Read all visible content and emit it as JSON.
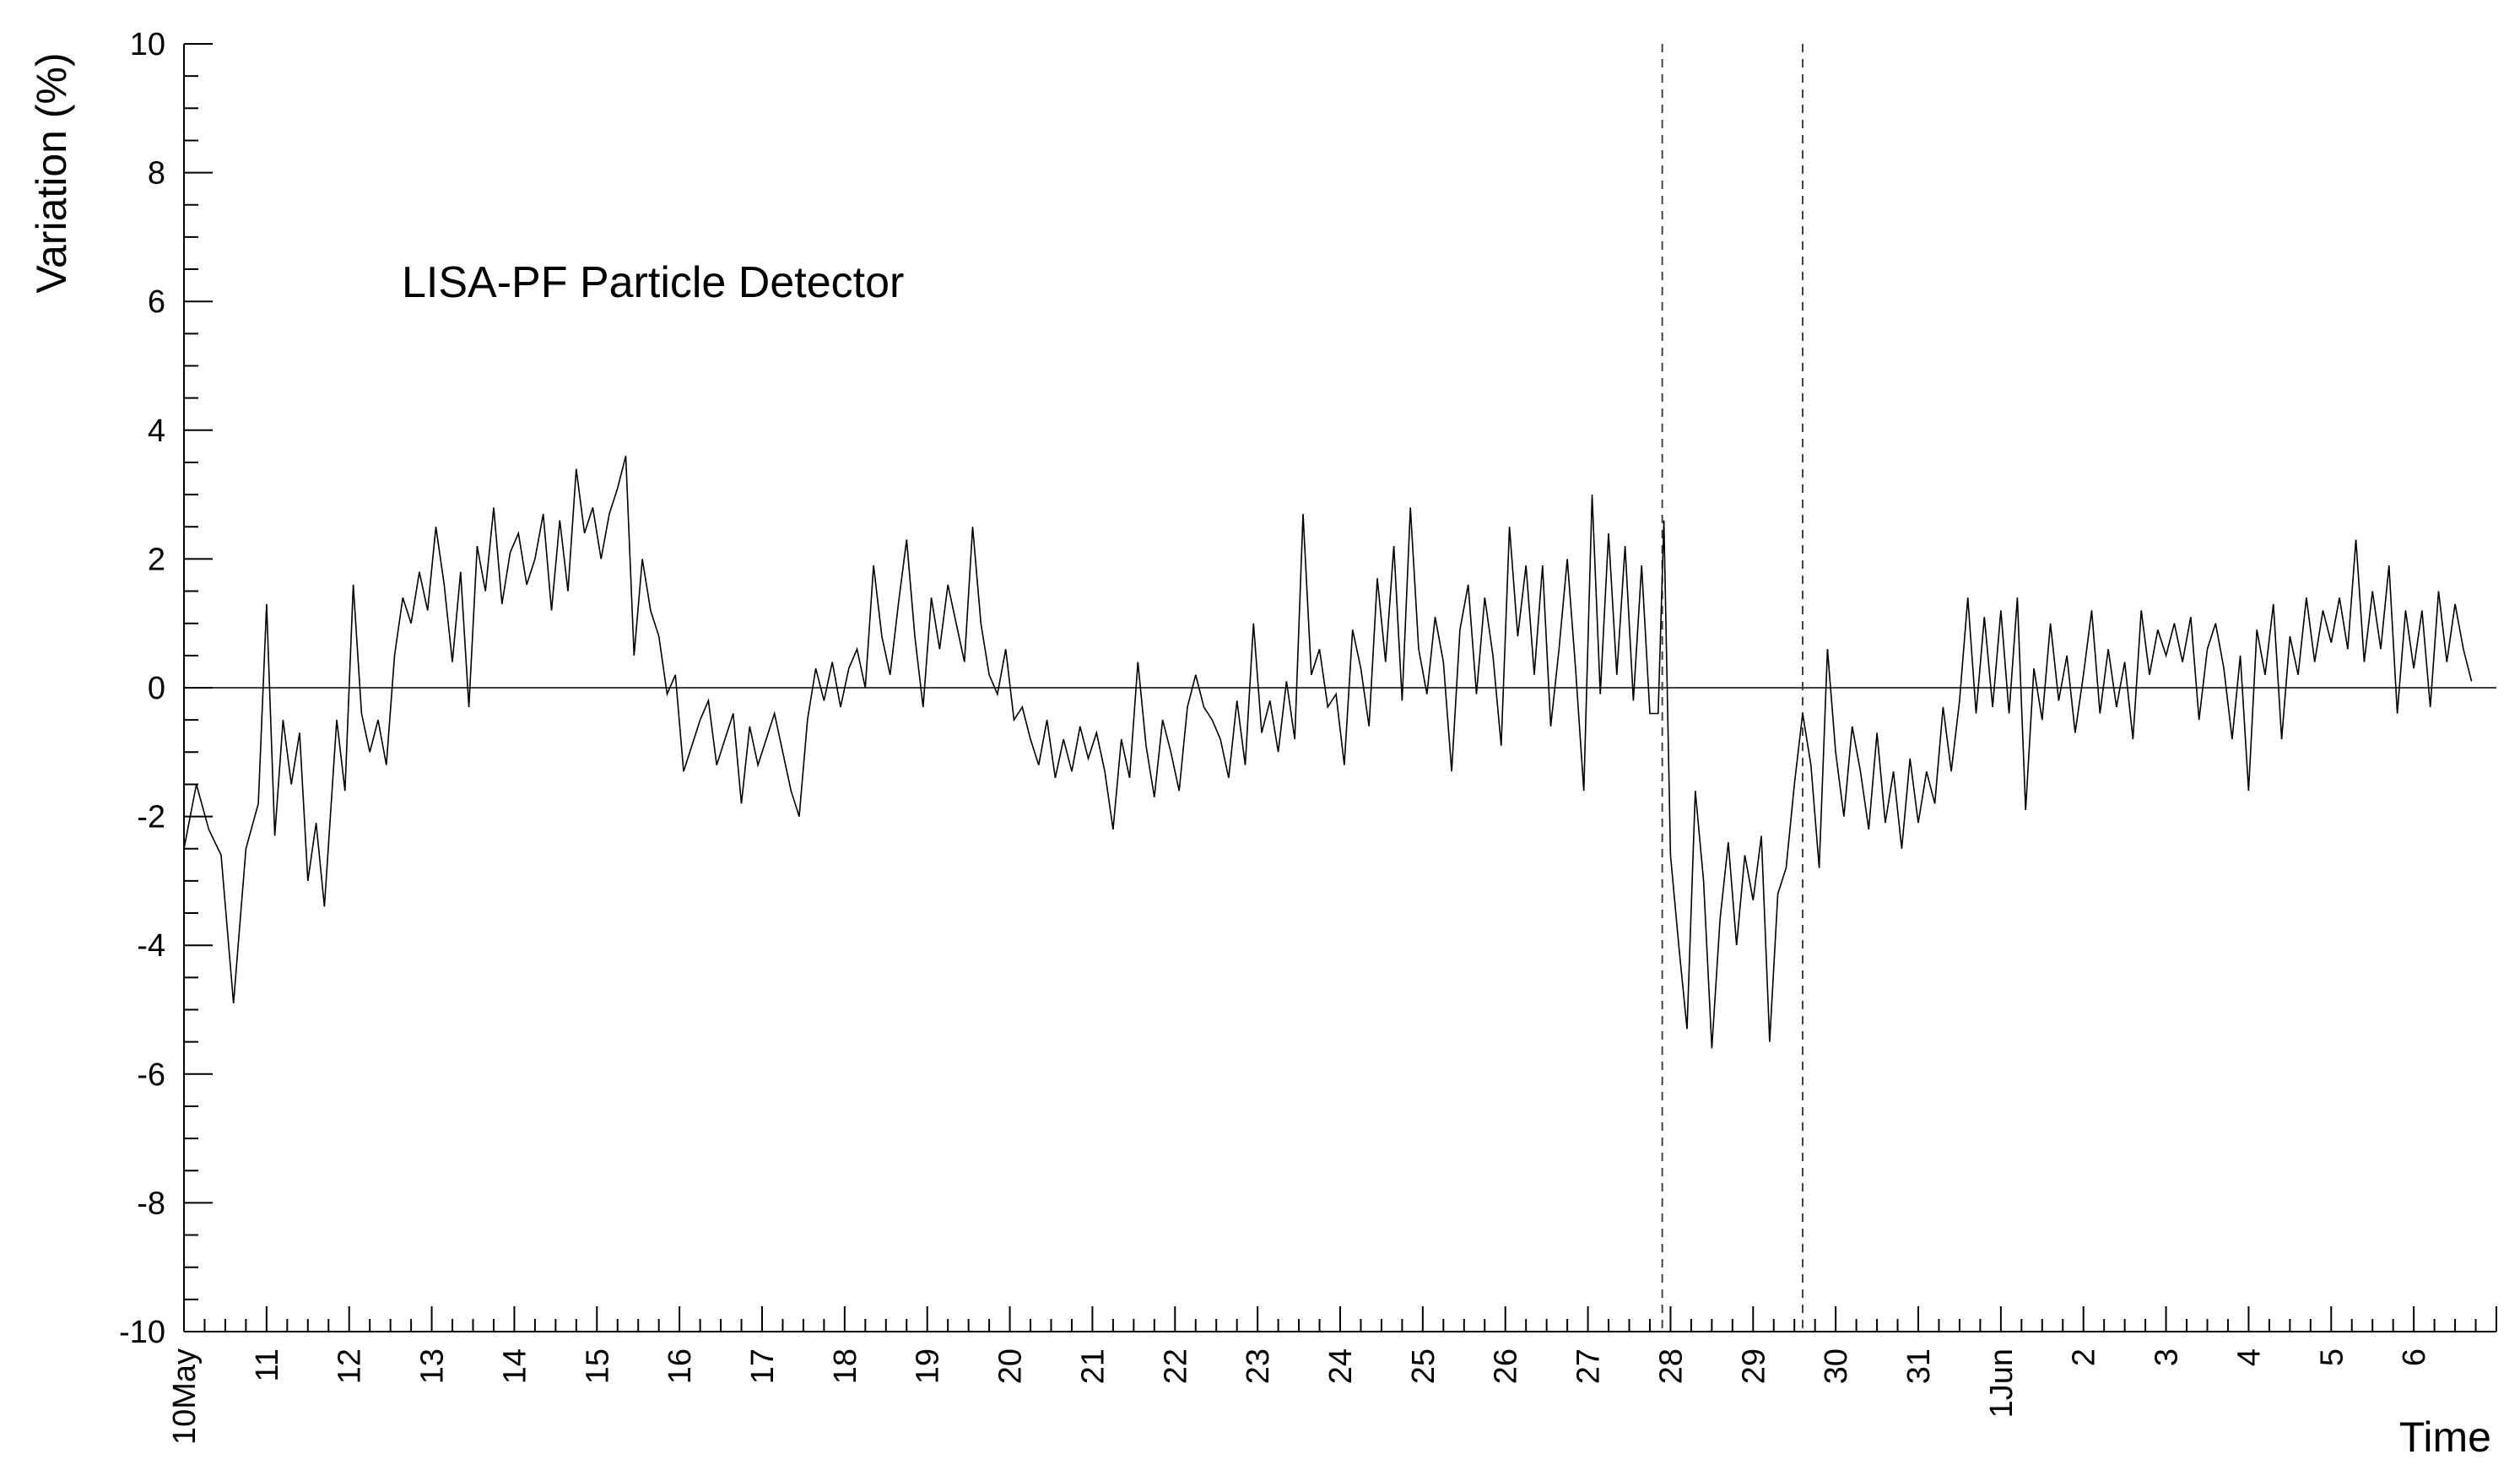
{
  "chart_data": {
    "type": "line",
    "title": "",
    "annotation": "LISA-PF Particle Detector",
    "ylabel": "Variation (%)",
    "xlabel": "Time",
    "ylim": [
      -10,
      10
    ],
    "xlim": [
      0,
      28
    ],
    "yticks": [
      -10,
      -8,
      -6,
      -4,
      -2,
      0,
      2,
      4,
      6,
      8,
      10
    ],
    "y_tick_labels": [
      "-10",
      "-8",
      "-6",
      "-4",
      "-2",
      "0",
      "2",
      "4",
      "6",
      "8",
      "10"
    ],
    "x_tick_labels": [
      "10May",
      "11",
      "12",
      "13",
      "14",
      "15",
      "16",
      "17",
      "18",
      "19",
      "20",
      "21",
      "22",
      "23",
      "24",
      "25",
      "26",
      "27",
      "28",
      "29",
      "30",
      "31",
      "1Jun",
      "2",
      "3",
      "4",
      "5",
      "6"
    ],
    "x_tick_days": [
      0,
      1,
      2,
      3,
      4,
      5,
      6,
      7,
      8,
      9,
      10,
      11,
      12,
      13,
      14,
      15,
      16,
      17,
      18,
      19,
      20,
      21,
      22,
      23,
      24,
      25,
      26,
      27
    ],
    "x_unit": "days since 10 May",
    "reference_line_y": 0,
    "dashed_vertical_lines_x": [
      17.9,
      19.6
    ],
    "series": [
      {
        "name": "",
        "color": "#000000",
        "points": [
          [
            0.0,
            -2.5
          ],
          [
            0.15,
            -1.5
          ],
          [
            0.3,
            -2.2
          ],
          [
            0.45,
            -2.6
          ],
          [
            0.6,
            -4.9
          ],
          [
            0.75,
            -2.5
          ],
          [
            0.9,
            -1.8
          ],
          [
            1.0,
            1.3
          ],
          [
            1.1,
            -2.3
          ],
          [
            1.2,
            -0.5
          ],
          [
            1.3,
            -1.5
          ],
          [
            1.4,
            -0.7
          ],
          [
            1.5,
            -3.0
          ],
          [
            1.6,
            -2.1
          ],
          [
            1.7,
            -3.4
          ],
          [
            1.85,
            -0.5
          ],
          [
            1.95,
            -1.6
          ],
          [
            2.05,
            1.6
          ],
          [
            2.15,
            -0.4
          ],
          [
            2.25,
            -1.0
          ],
          [
            2.35,
            -0.5
          ],
          [
            2.45,
            -1.2
          ],
          [
            2.55,
            0.5
          ],
          [
            2.65,
            1.4
          ],
          [
            2.75,
            1.0
          ],
          [
            2.85,
            1.8
          ],
          [
            2.95,
            1.2
          ],
          [
            3.05,
            2.5
          ],
          [
            3.15,
            1.6
          ],
          [
            3.25,
            0.4
          ],
          [
            3.35,
            1.8
          ],
          [
            3.45,
            -0.3
          ],
          [
            3.55,
            2.2
          ],
          [
            3.65,
            1.5
          ],
          [
            3.75,
            2.8
          ],
          [
            3.85,
            1.3
          ],
          [
            3.95,
            2.1
          ],
          [
            4.05,
            2.4
          ],
          [
            4.15,
            1.6
          ],
          [
            4.25,
            2.0
          ],
          [
            4.35,
            2.7
          ],
          [
            4.45,
            1.2
          ],
          [
            4.55,
            2.6
          ],
          [
            4.65,
            1.5
          ],
          [
            4.75,
            3.4
          ],
          [
            4.85,
            2.4
          ],
          [
            4.95,
            2.8
          ],
          [
            5.05,
            2.0
          ],
          [
            5.15,
            2.7
          ],
          [
            5.25,
            3.1
          ],
          [
            5.35,
            3.6
          ],
          [
            5.45,
            0.5
          ],
          [
            5.55,
            2.0
          ],
          [
            5.65,
            1.2
          ],
          [
            5.75,
            0.8
          ],
          [
            5.85,
            -0.1
          ],
          [
            5.95,
            0.2
          ],
          [
            6.05,
            -1.3
          ],
          [
            6.15,
            -0.9
          ],
          [
            6.25,
            -0.5
          ],
          [
            6.35,
            -0.2
          ],
          [
            6.45,
            -1.2
          ],
          [
            6.55,
            -0.8
          ],
          [
            6.65,
            -0.4
          ],
          [
            6.75,
            -1.8
          ],
          [
            6.85,
            -0.6
          ],
          [
            6.95,
            -1.2
          ],
          [
            7.05,
            -0.8
          ],
          [
            7.15,
            -0.4
          ],
          [
            7.25,
            -1.0
          ],
          [
            7.35,
            -1.6
          ],
          [
            7.45,
            -2.0
          ],
          [
            7.55,
            -0.5
          ],
          [
            7.65,
            0.3
          ],
          [
            7.75,
            -0.2
          ],
          [
            7.85,
            0.4
          ],
          [
            7.95,
            -0.3
          ],
          [
            8.05,
            0.3
          ],
          [
            8.15,
            0.6
          ],
          [
            8.25,
            0.0
          ],
          [
            8.35,
            1.9
          ],
          [
            8.45,
            0.8
          ],
          [
            8.55,
            0.2
          ],
          [
            8.65,
            1.3
          ],
          [
            8.75,
            2.3
          ],
          [
            8.85,
            0.8
          ],
          [
            8.95,
            -0.3
          ],
          [
            9.05,
            1.4
          ],
          [
            9.15,
            0.6
          ],
          [
            9.25,
            1.6
          ],
          [
            9.35,
            1.0
          ],
          [
            9.45,
            0.4
          ],
          [
            9.55,
            2.5
          ],
          [
            9.65,
            1.0
          ],
          [
            9.75,
            0.2
          ],
          [
            9.85,
            -0.1
          ],
          [
            9.95,
            0.6
          ],
          [
            10.05,
            -0.5
          ],
          [
            10.15,
            -0.3
          ],
          [
            10.25,
            -0.8
          ],
          [
            10.35,
            -1.2
          ],
          [
            10.45,
            -0.5
          ],
          [
            10.55,
            -1.4
          ],
          [
            10.65,
            -0.8
          ],
          [
            10.75,
            -1.3
          ],
          [
            10.85,
            -0.6
          ],
          [
            10.95,
            -1.1
          ],
          [
            11.05,
            -0.7
          ],
          [
            11.15,
            -1.3
          ],
          [
            11.25,
            -2.2
          ],
          [
            11.35,
            -0.8
          ],
          [
            11.45,
            -1.4
          ],
          [
            11.55,
            0.4
          ],
          [
            11.65,
            -0.9
          ],
          [
            11.75,
            -1.7
          ],
          [
            11.85,
            -0.5
          ],
          [
            11.95,
            -1.0
          ],
          [
            12.05,
            -1.6
          ],
          [
            12.15,
            -0.3
          ],
          [
            12.25,
            0.2
          ],
          [
            12.35,
            -0.3
          ],
          [
            12.45,
            -0.5
          ],
          [
            12.55,
            -0.8
          ],
          [
            12.65,
            -1.4
          ],
          [
            12.75,
            -0.2
          ],
          [
            12.85,
            -1.2
          ],
          [
            12.95,
            1.0
          ],
          [
            13.05,
            -0.7
          ],
          [
            13.15,
            -0.2
          ],
          [
            13.25,
            -1.0
          ],
          [
            13.35,
            0.1
          ],
          [
            13.45,
            -0.8
          ],
          [
            13.55,
            2.7
          ],
          [
            13.65,
            0.2
          ],
          [
            13.75,
            0.6
          ],
          [
            13.85,
            -0.3
          ],
          [
            13.95,
            -0.1
          ],
          [
            14.05,
            -1.2
          ],
          [
            14.15,
            0.9
          ],
          [
            14.25,
            0.3
          ],
          [
            14.35,
            -0.6
          ],
          [
            14.45,
            1.7
          ],
          [
            14.55,
            0.4
          ],
          [
            14.65,
            2.2
          ],
          [
            14.75,
            -0.2
          ],
          [
            14.85,
            2.8
          ],
          [
            14.95,
            0.6
          ],
          [
            15.05,
            -0.1
          ],
          [
            15.15,
            1.1
          ],
          [
            15.25,
            0.4
          ],
          [
            15.35,
            -1.3
          ],
          [
            15.45,
            0.9
          ],
          [
            15.55,
            1.6
          ],
          [
            15.65,
            -0.1
          ],
          [
            15.75,
            1.4
          ],
          [
            15.85,
            0.5
          ],
          [
            15.95,
            -0.9
          ],
          [
            16.05,
            2.5
          ],
          [
            16.15,
            0.8
          ],
          [
            16.25,
            1.9
          ],
          [
            16.35,
            0.2
          ],
          [
            16.45,
            1.9
          ],
          [
            16.55,
            -0.6
          ],
          [
            16.65,
            0.6
          ],
          [
            16.75,
            2.0
          ],
          [
            16.85,
            0.3
          ],
          [
            16.95,
            -1.6
          ],
          [
            17.05,
            3.0
          ],
          [
            17.15,
            -0.1
          ],
          [
            17.25,
            2.4
          ],
          [
            17.35,
            0.2
          ],
          [
            17.45,
            2.2
          ],
          [
            17.55,
            -0.2
          ],
          [
            17.65,
            1.9
          ],
          [
            17.75,
            -0.4
          ],
          [
            17.85,
            -0.4
          ],
          [
            17.92,
            2.6
          ],
          [
            18.0,
            -2.6
          ],
          [
            18.1,
            -4.0
          ],
          [
            18.2,
            -5.3
          ],
          [
            18.3,
            -1.6
          ],
          [
            18.4,
            -3.0
          ],
          [
            18.5,
            -5.6
          ],
          [
            18.6,
            -3.6
          ],
          [
            18.7,
            -2.4
          ],
          [
            18.8,
            -4.0
          ],
          [
            18.9,
            -2.6
          ],
          [
            19.0,
            -3.3
          ],
          [
            19.1,
            -2.3
          ],
          [
            19.2,
            -5.5
          ],
          [
            19.3,
            -3.2
          ],
          [
            19.4,
            -2.8
          ],
          [
            19.5,
            -1.5
          ],
          [
            19.6,
            -0.4
          ],
          [
            19.7,
            -1.2
          ],
          [
            19.8,
            -2.8
          ],
          [
            19.9,
            0.6
          ],
          [
            20.0,
            -1.0
          ],
          [
            20.1,
            -2.0
          ],
          [
            20.2,
            -0.6
          ],
          [
            20.3,
            -1.3
          ],
          [
            20.4,
            -2.2
          ],
          [
            20.5,
            -0.7
          ],
          [
            20.6,
            -2.1
          ],
          [
            20.7,
            -1.3
          ],
          [
            20.8,
            -2.5
          ],
          [
            20.9,
            -1.1
          ],
          [
            21.0,
            -2.1
          ],
          [
            21.1,
            -1.3
          ],
          [
            21.2,
            -1.8
          ],
          [
            21.3,
            -0.3
          ],
          [
            21.4,
            -1.3
          ],
          [
            21.5,
            -0.2
          ],
          [
            21.6,
            1.4
          ],
          [
            21.7,
            -0.4
          ],
          [
            21.8,
            1.1
          ],
          [
            21.9,
            -0.3
          ],
          [
            22.0,
            1.2
          ],
          [
            22.1,
            -0.4
          ],
          [
            22.2,
            1.4
          ],
          [
            22.3,
            -1.9
          ],
          [
            22.4,
            0.3
          ],
          [
            22.5,
            -0.5
          ],
          [
            22.6,
            1.0
          ],
          [
            22.7,
            -0.2
          ],
          [
            22.8,
            0.5
          ],
          [
            22.9,
            -0.7
          ],
          [
            23.0,
            0.2
          ],
          [
            23.1,
            1.2
          ],
          [
            23.2,
            -0.4
          ],
          [
            23.3,
            0.6
          ],
          [
            23.4,
            -0.3
          ],
          [
            23.5,
            0.4
          ],
          [
            23.6,
            -0.8
          ],
          [
            23.7,
            1.2
          ],
          [
            23.8,
            0.2
          ],
          [
            23.9,
            0.9
          ],
          [
            24.0,
            0.5
          ],
          [
            24.1,
            1.0
          ],
          [
            24.2,
            0.4
          ],
          [
            24.3,
            1.1
          ],
          [
            24.4,
            -0.5
          ],
          [
            24.5,
            0.6
          ],
          [
            24.6,
            1.0
          ],
          [
            24.7,
            0.3
          ],
          [
            24.8,
            -0.8
          ],
          [
            24.9,
            0.5
          ],
          [
            25.0,
            -1.6
          ],
          [
            25.1,
            0.9
          ],
          [
            25.2,
            0.2
          ],
          [
            25.3,
            1.3
          ],
          [
            25.4,
            -0.8
          ],
          [
            25.5,
            0.8
          ],
          [
            25.6,
            0.2
          ],
          [
            25.7,
            1.4
          ],
          [
            25.8,
            0.4
          ],
          [
            25.9,
            1.2
          ],
          [
            26.0,
            0.7
          ],
          [
            26.1,
            1.4
          ],
          [
            26.2,
            0.6
          ],
          [
            26.3,
            2.3
          ],
          [
            26.4,
            0.4
          ],
          [
            26.5,
            1.5
          ],
          [
            26.6,
            0.6
          ],
          [
            26.7,
            1.9
          ],
          [
            26.8,
            -0.4
          ],
          [
            26.9,
            1.2
          ],
          [
            27.0,
            0.3
          ],
          [
            27.1,
            1.2
          ],
          [
            27.2,
            -0.3
          ],
          [
            27.3,
            1.5
          ],
          [
            27.4,
            0.4
          ],
          [
            27.5,
            1.3
          ],
          [
            27.6,
            0.6
          ],
          [
            27.7,
            0.1
          ]
        ]
      }
    ]
  }
}
